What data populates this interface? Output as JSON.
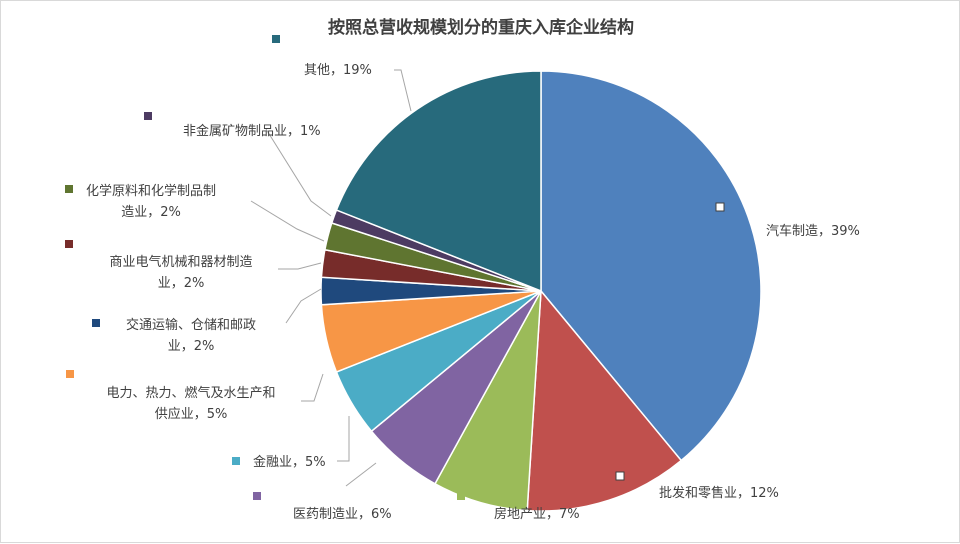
{
  "chart_data": {
    "type": "pie",
    "title": "按照总营收规模划分的重庆入库企业结构",
    "slices": [
      {
        "name": "汽车制造",
        "value": 39,
        "label_lines": [
          "汽车制造，39%"
        ],
        "color": "#4F81BD"
      },
      {
        "name": "批发和零售业",
        "value": 12,
        "label_lines": [
          "批发和零售业，12%"
        ],
        "color": "#C0504D"
      },
      {
        "name": "房地产业",
        "value": 7,
        "label_lines": [
          "房地产业，7%"
        ],
        "color": "#9BBB59"
      },
      {
        "name": "医药制造业",
        "value": 6,
        "label_lines": [
          "医药制造业，6%"
        ],
        "color": "#8064A2"
      },
      {
        "name": "金融业",
        "value": 5,
        "label_lines": [
          "金融业，5%"
        ],
        "color": "#4BACC6"
      },
      {
        "name": "电力、热力、燃气及水生产和供应业",
        "value": 5,
        "label_lines": [
          "电力、热力、燃气及水生产和",
          "供应业，5%"
        ],
        "color": "#F79646"
      },
      {
        "name": "交通运输、仓储和邮政业",
        "value": 2,
        "label_lines": [
          "交通运输、仓储和邮政",
          "业，2%"
        ],
        "color": "#1F497D"
      },
      {
        "name": "商业电气机械和器材制造业",
        "value": 2,
        "label_lines": [
          "商业电气机械和器材制造",
          "业，2%"
        ],
        "color": "#772C2A"
      },
      {
        "name": "化学原料和化学制品制造业",
        "value": 2,
        "label_lines": [
          "化学原料和化学制品制",
          "造业，2%"
        ],
        "color": "#5F7530"
      },
      {
        "name": "非金属矿物制品业",
        "value": 1,
        "label_lines": [
          "非金属矿物制品业，1%"
        ],
        "color": "#4D3B62"
      },
      {
        "name": "其他",
        "value": 19,
        "label_lines": [
          "其他，19%"
        ],
        "color": "#276A7C"
      }
    ]
  }
}
